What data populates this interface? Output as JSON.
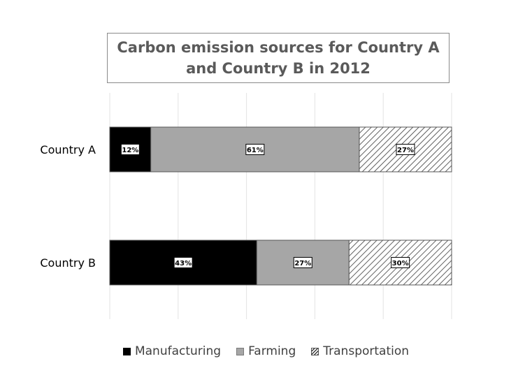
{
  "chart_data": {
    "type": "bar",
    "orientation": "horizontal",
    "stacked": "percent",
    "title": "Carbon emission sources for Country A and Country B in 2012",
    "categories": [
      "Country A",
      "Country B"
    ],
    "series": [
      {
        "name": "Manufacturing",
        "values": [
          12,
          43
        ],
        "labels": [
          "12%",
          "43%"
        ],
        "color": "#000000",
        "pattern": "solid"
      },
      {
        "name": "Farming",
        "values": [
          61,
          27
        ],
        "labels": [
          "61%",
          "27%"
        ],
        "color": "#a6a6a6",
        "pattern": "solid"
      },
      {
        "name": "Transportation",
        "values": [
          27,
          30
        ],
        "labels": [
          "27%",
          "30%"
        ],
        "color": "#ffffff",
        "pattern": "diagonal-hatch"
      }
    ],
    "xlim": [
      0,
      100
    ],
    "grid": true,
    "legend": "bottom"
  }
}
